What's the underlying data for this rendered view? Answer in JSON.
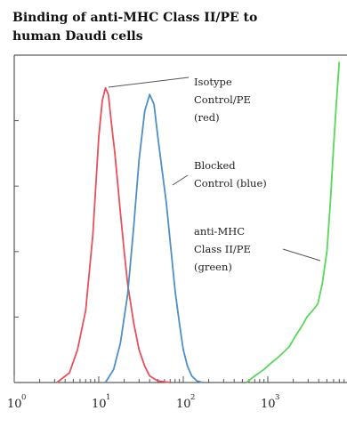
{
  "chart_data": {
    "type": "line",
    "title": "Binding of anti-MHC Class II/PE to human Daudi cells",
    "title_lines": [
      "Binding of anti-MHC Class II/PE to",
      "human Daudi cells"
    ],
    "x_scale": "log",
    "xlim": [
      1,
      10000
    ],
    "ylim": [
      0,
      100
    ],
    "x_ticks": [
      {
        "value": 1,
        "base": "10",
        "exp": "0"
      },
      {
        "value": 10,
        "base": "10",
        "exp": "1"
      },
      {
        "value": 100,
        "base": "10",
        "exp": "2"
      },
      {
        "value": 1000,
        "base": "10",
        "exp": "3"
      }
    ],
    "series": [
      {
        "name": "Isotype Control/PE (red)",
        "color": "#e8505a",
        "x": [
          3.2,
          4.5,
          5.6,
          7,
          8.5,
          10,
          11,
          12,
          13,
          14,
          15.5,
          18,
          20,
          22,
          26,
          30,
          35,
          40,
          50,
          70
        ],
        "y": [
          0,
          3,
          10,
          22,
          45,
          75,
          86,
          90,
          88,
          80,
          70,
          52,
          40,
          30,
          18,
          10,
          5,
          2,
          0.5,
          0
        ]
      },
      {
        "name": "Blocked Control (blue)",
        "color": "#4e8fc8",
        "x": [
          12,
          15,
          18,
          22,
          26,
          30,
          35,
          40,
          45,
          50,
          56,
          63,
          70,
          80,
          90,
          100,
          112,
          126,
          145,
          170
        ],
        "y": [
          0,
          4,
          12,
          27,
          48,
          68,
          83,
          88,
          85,
          75,
          65,
          55,
          43,
          28,
          18,
          10,
          5,
          2,
          0.5,
          0
        ]
      },
      {
        "name": "anti-MHC Class II/PE (green)",
        "color": "#56d85a",
        "x": [
          560,
          700,
          900,
          1100,
          1300,
          1500,
          1800,
          2100,
          2500,
          2900,
          3400,
          3900,
          4400,
          5000,
          5500,
          6000,
          6500,
          7000
        ],
        "y": [
          0,
          2,
          4,
          6,
          7.5,
          9,
          11,
          14,
          17,
          20,
          22,
          24,
          30,
          40,
          55,
          72,
          86,
          98
        ]
      }
    ],
    "annotations": [
      {
        "lines": [
          "Isotype",
          "Control/PE",
          "(red)"
        ]
      },
      {
        "lines": [
          "Blocked",
          "Control (blue)"
        ]
      },
      {
        "lines": [
          "anti-MHC",
          "Class II/PE",
          "(green)"
        ]
      }
    ],
    "grid": false,
    "legend": "none"
  }
}
